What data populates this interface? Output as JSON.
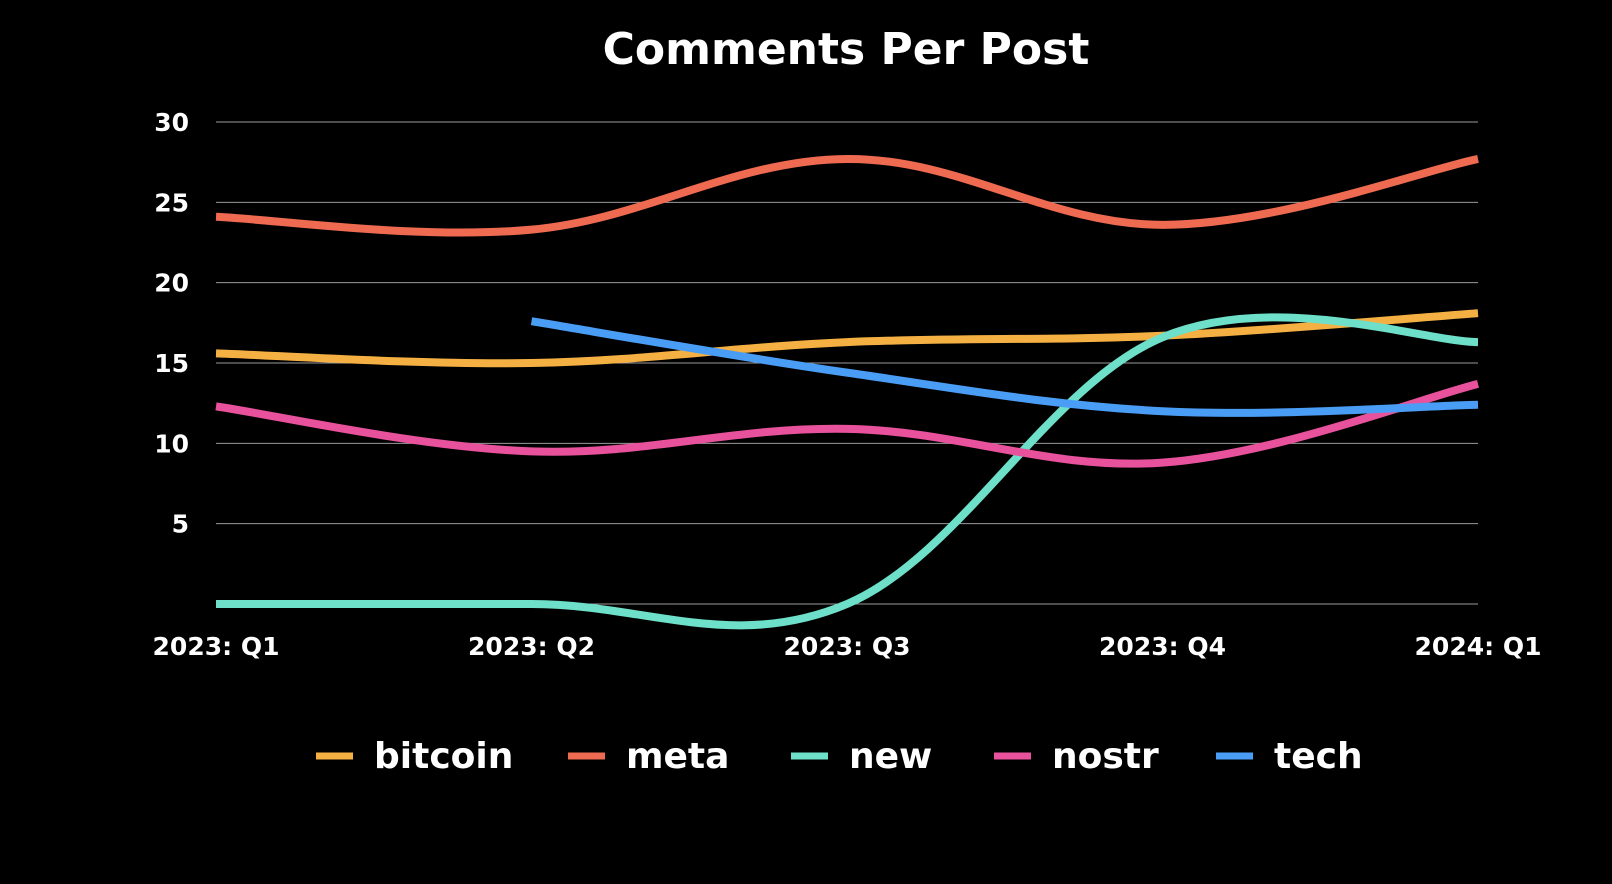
{
  "chart_data": {
    "type": "line",
    "title": "Comments Per Post",
    "xlabel": "",
    "ylabel": "",
    "categories": [
      "2023: Q1",
      "2023: Q2",
      "2023: Q3",
      "2023: Q4",
      "2024: Q1"
    ],
    "ylim": [
      0,
      30
    ],
    "yticks": [
      5,
      10,
      15,
      20,
      25,
      30
    ],
    "grid": true,
    "legend_position": "bottom",
    "series": [
      {
        "name": "bitcoin",
        "color": "#F4B042",
        "values": [
          15.6,
          15.0,
          16.3,
          16.7,
          18.1
        ]
      },
      {
        "name": "meta",
        "color": "#EE6A50",
        "values": [
          24.1,
          23.3,
          27.7,
          23.6,
          27.7
        ]
      },
      {
        "name": "new",
        "color": "#6EDFC8",
        "values": [
          0,
          0,
          0,
          16.6,
          16.3
        ]
      },
      {
        "name": "nostr",
        "color": "#E8519C",
        "values": [
          12.3,
          9.5,
          10.9,
          8.8,
          13.7
        ]
      },
      {
        "name": "tech",
        "color": "#4A9DF5",
        "values": [
          null,
          17.6,
          14.4,
          12.0,
          12.4
        ]
      }
    ]
  }
}
